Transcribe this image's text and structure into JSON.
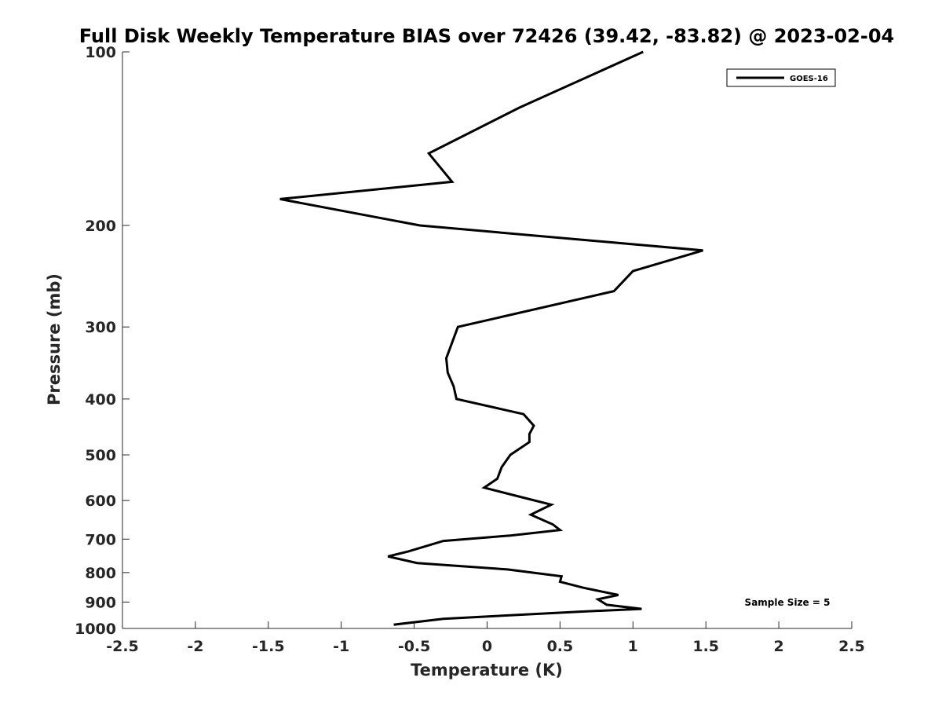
{
  "chart_data": {
    "type": "line",
    "title": "Full Disk Weekly Temperature BIAS over 72426 (39.42, -83.82) @ 2023-02-04",
    "xlabel": "Temperature (K)",
    "ylabel": "Pressure (mb)",
    "xlim": [
      -2.5,
      2.5
    ],
    "ylim": [
      1000,
      100
    ],
    "y_scale": "log",
    "grid": false,
    "legend_position": "top-right",
    "x_ticks": [
      -2.5,
      -2,
      -1.5,
      -1,
      -0.5,
      0,
      0.5,
      1,
      1.5,
      2,
      2.5
    ],
    "x_tick_labels": [
      "-2.5",
      "-2",
      "-1.5",
      "-1",
      "-0.5",
      "0",
      "0.5",
      "1",
      "1.5",
      "2",
      "2.5"
    ],
    "y_ticks": [
      100,
      200,
      300,
      400,
      500,
      600,
      700,
      800,
      900,
      1000
    ],
    "y_tick_labels": [
      "100",
      "200",
      "300",
      "400",
      "500",
      "600",
      "700",
      "800",
      "900",
      "1000"
    ],
    "series": [
      {
        "name": "GOES-16",
        "color": "#000000",
        "points": [
          {
            "x": 1.07,
            "p": 100
          },
          {
            "x": 0.22,
            "p": 125
          },
          {
            "x": -0.4,
            "p": 150
          },
          {
            "x": -0.24,
            "p": 168
          },
          {
            "x": -1.42,
            "p": 180
          },
          {
            "x": -0.46,
            "p": 200
          },
          {
            "x": 1.48,
            "p": 221
          },
          {
            "x": 1.0,
            "p": 240
          },
          {
            "x": 0.87,
            "p": 260
          },
          {
            "x": -0.2,
            "p": 300
          },
          {
            "x": -0.28,
            "p": 340
          },
          {
            "x": -0.27,
            "p": 360
          },
          {
            "x": -0.23,
            "p": 380
          },
          {
            "x": -0.21,
            "p": 400
          },
          {
            "x": 0.25,
            "p": 425
          },
          {
            "x": 0.32,
            "p": 445
          },
          {
            "x": 0.29,
            "p": 460
          },
          {
            "x": 0.29,
            "p": 475
          },
          {
            "x": 0.16,
            "p": 500
          },
          {
            "x": 0.1,
            "p": 525
          },
          {
            "x": 0.07,
            "p": 550
          },
          {
            "x": -0.02,
            "p": 570
          },
          {
            "x": 0.27,
            "p": 595
          },
          {
            "x": 0.44,
            "p": 610
          },
          {
            "x": 0.3,
            "p": 635
          },
          {
            "x": 0.45,
            "p": 660
          },
          {
            "x": 0.5,
            "p": 675
          },
          {
            "x": 0.16,
            "p": 690
          },
          {
            "x": -0.3,
            "p": 705
          },
          {
            "x": -0.54,
            "p": 735
          },
          {
            "x": -0.68,
            "p": 750
          },
          {
            "x": -0.48,
            "p": 770
          },
          {
            "x": 0.14,
            "p": 790
          },
          {
            "x": 0.51,
            "p": 812
          },
          {
            "x": 0.5,
            "p": 830
          },
          {
            "x": 0.66,
            "p": 850
          },
          {
            "x": 0.9,
            "p": 875
          },
          {
            "x": 0.76,
            "p": 890
          },
          {
            "x": 0.82,
            "p": 910
          },
          {
            "x": 1.06,
            "p": 925
          },
          {
            "x": 0.64,
            "p": 935
          },
          {
            "x": -0.3,
            "p": 962
          },
          {
            "x": -0.64,
            "p": 985
          }
        ]
      }
    ],
    "annotations": [
      {
        "text": "Sample Size = 5",
        "position": "bottom-right"
      }
    ]
  }
}
